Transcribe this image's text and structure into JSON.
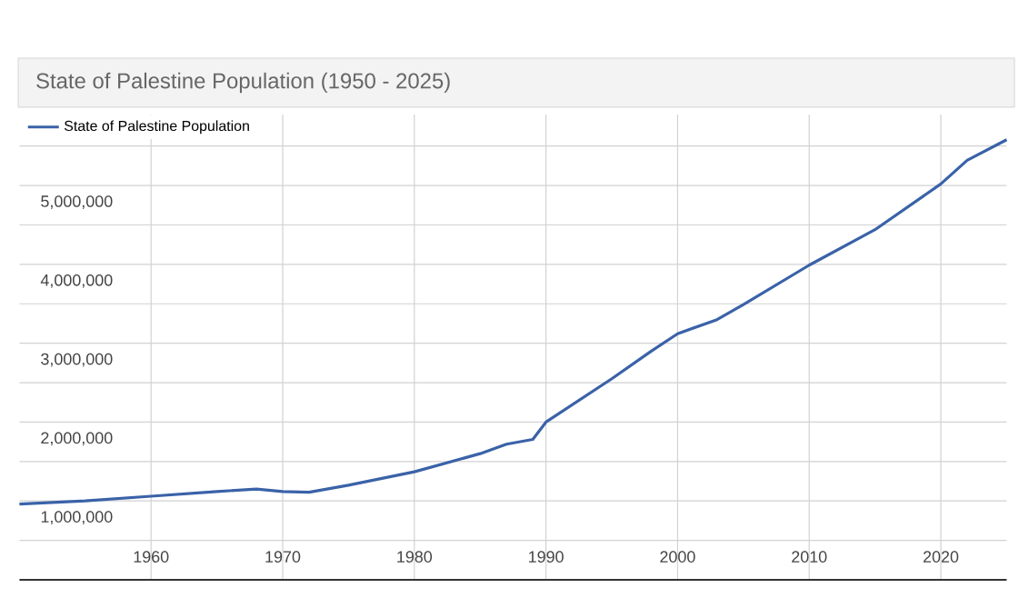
{
  "chart_data": {
    "type": "line",
    "title": "State of Palestine Population (1950 - 2025)",
    "x": [
      1950,
      1955,
      1960,
      1965,
      1968,
      1970,
      1972,
      1975,
      1980,
      1985,
      1987,
      1989,
      1990,
      1995,
      1998,
      2000,
      2003,
      2005,
      2010,
      2015,
      2020,
      2022,
      2025
    ],
    "series": [
      {
        "name": "State of Palestine Population",
        "color": "#3a62a8",
        "values": [
          960000,
          1000000,
          1060000,
          1120000,
          1150000,
          1120000,
          1110000,
          1200000,
          1370000,
          1600000,
          1720000,
          1780000,
          2000000,
          2550000,
          2900000,
          3120000,
          3300000,
          3490000,
          3990000,
          4440000,
          5020000,
          5320000,
          5580000
        ]
      }
    ],
    "xlim": [
      1950,
      2025
    ],
    "ylim": [
      0,
      5900000
    ],
    "xticks": [
      1960,
      1970,
      1980,
      1990,
      2000,
      2010,
      2020
    ],
    "yticks": [
      {
        "value": 500000,
        "label": null
      },
      {
        "value": 1000000,
        "label": "1,000,000"
      },
      {
        "value": 1500000,
        "label": null
      },
      {
        "value": 2000000,
        "label": "2,000,000"
      },
      {
        "value": 2500000,
        "label": null
      },
      {
        "value": 3000000,
        "label": "3,000,000"
      },
      {
        "value": 3500000,
        "label": null
      },
      {
        "value": 4000000,
        "label": "4,000,000"
      },
      {
        "value": 4500000,
        "label": null
      },
      {
        "value": 5000000,
        "label": "5,000,000"
      },
      {
        "value": 5500000,
        "label": null
      }
    ],
    "grid": true,
    "legend": "top left"
  }
}
